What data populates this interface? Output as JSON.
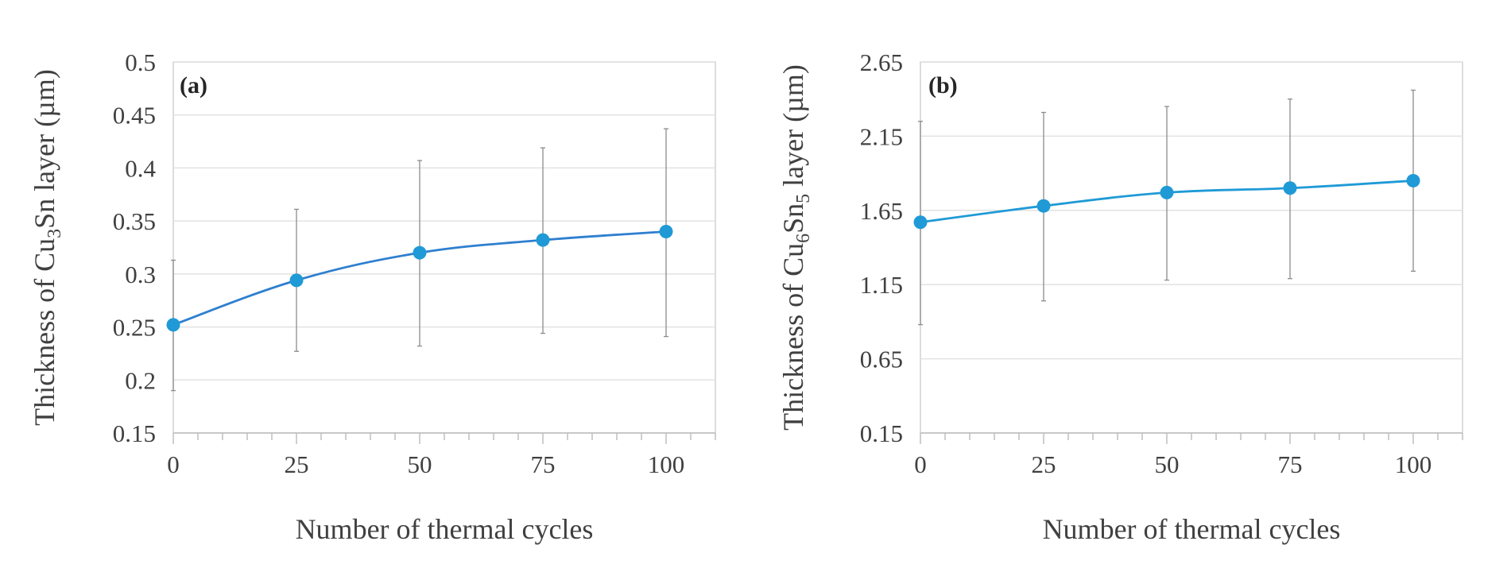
{
  "chart_data": [
    {
      "type": "line",
      "panel_label": "(a)",
      "xlabel": "Number of thermal cycles",
      "ylabel": {
        "pre": "Thickness of Cu",
        "sub": "3",
        "post": "Sn layer (µm)"
      },
      "xlim": [
        0,
        110
      ],
      "ylim": [
        0.15,
        0.5
      ],
      "x_ticks": [
        0,
        25,
        50,
        75,
        100
      ],
      "x_tick_labels": [
        "0",
        "25",
        "50",
        "75",
        "100"
      ],
      "y_ticks": [
        0.15,
        0.2,
        0.25,
        0.3,
        0.35,
        0.4,
        0.45,
        0.5
      ],
      "y_tick_labels": [
        "0.15",
        "0.2",
        "0.25",
        "0.3",
        "0.35",
        "0.4",
        "0.45",
        "0.5"
      ],
      "grid": true,
      "series": [
        {
          "name": "Cu3Sn",
          "color": "#2e7fcf",
          "marker_color": "#1f9ad6",
          "x": [
            0,
            25,
            50,
            75,
            100
          ],
          "y": [
            0.252,
            0.294,
            0.32,
            0.332,
            0.34
          ],
          "err_low": [
            0.19,
            0.227,
            0.232,
            0.244,
            0.241
          ],
          "err_high": [
            0.313,
            0.361,
            0.407,
            0.419,
            0.437
          ]
        }
      ]
    },
    {
      "type": "line",
      "panel_label": "(b)",
      "xlabel": "Number of thermal cycles",
      "ylabel": {
        "pre": "Thickness of Cu",
        "sub": "6",
        "mid": "Sn",
        "sub2": "5",
        "post": " layer (µm)"
      },
      "xlim": [
        0,
        110
      ],
      "ylim": [
        0.15,
        2.65
      ],
      "x_ticks": [
        0,
        25,
        50,
        75,
        100
      ],
      "x_tick_labels": [
        "0",
        "25",
        "50",
        "75",
        "100"
      ],
      "y_ticks": [
        0.15,
        0.65,
        1.15,
        1.65,
        2.15,
        2.65
      ],
      "y_tick_labels": [
        "0.15",
        "0.65",
        "1.15",
        "1.65",
        "2.15",
        "2.65"
      ],
      "grid": true,
      "series": [
        {
          "name": "Cu6Sn5",
          "color": "#1f9ad6",
          "marker_color": "#1f9ad6",
          "x": [
            0,
            25,
            50,
            75,
            100
          ],
          "y": [
            1.57,
            1.68,
            1.77,
            1.8,
            1.85
          ],
          "err_low": [
            0.88,
            1.04,
            1.18,
            1.19,
            1.24
          ],
          "err_high": [
            2.25,
            2.31,
            2.35,
            2.4,
            2.46
          ]
        }
      ]
    }
  ]
}
